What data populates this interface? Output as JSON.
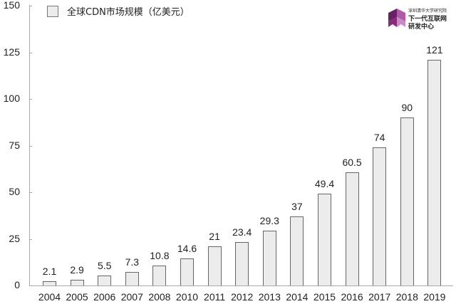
{
  "chart_data": {
    "type": "bar",
    "title": "",
    "xlabel": "",
    "ylabel": "",
    "ylim": [
      0,
      150
    ],
    "yticks": [
      0,
      25,
      50,
      75,
      100,
      125,
      150
    ],
    "grid": false,
    "legend_position": "top-left",
    "categories": [
      "2004",
      "2005",
      "2006",
      "2007",
      "2008",
      "2010",
      "2011",
      "2012",
      "2013",
      "2014",
      "2015",
      "2016",
      "2017",
      "2018",
      "2019"
    ],
    "series": [
      {
        "name": "全球CDN市场规模（亿美元）",
        "values": [
          2.1,
          2.9,
          5.5,
          7.3,
          10.8,
          14.6,
          21,
          23.4,
          29.3,
          37,
          49.4,
          60.5,
          74,
          90,
          121
        ]
      }
    ],
    "value_labels": [
      "2.1",
      "2.9",
      "5.5",
      "7.3",
      "10.8",
      "14.6",
      "21",
      "23.4",
      "29.3",
      "37",
      "49.4",
      "60.5",
      "74",
      "90",
      "121"
    ],
    "bar_fill": "#ececec",
    "bar_edge": "#666666"
  },
  "legend": {
    "label": "全球CDN市场规模（亿美元）"
  },
  "logo": {
    "line1": "深圳清华大学研究院",
    "line2": "下一代互联网",
    "line3": "研发中心",
    "color": "#8a2a7a"
  }
}
